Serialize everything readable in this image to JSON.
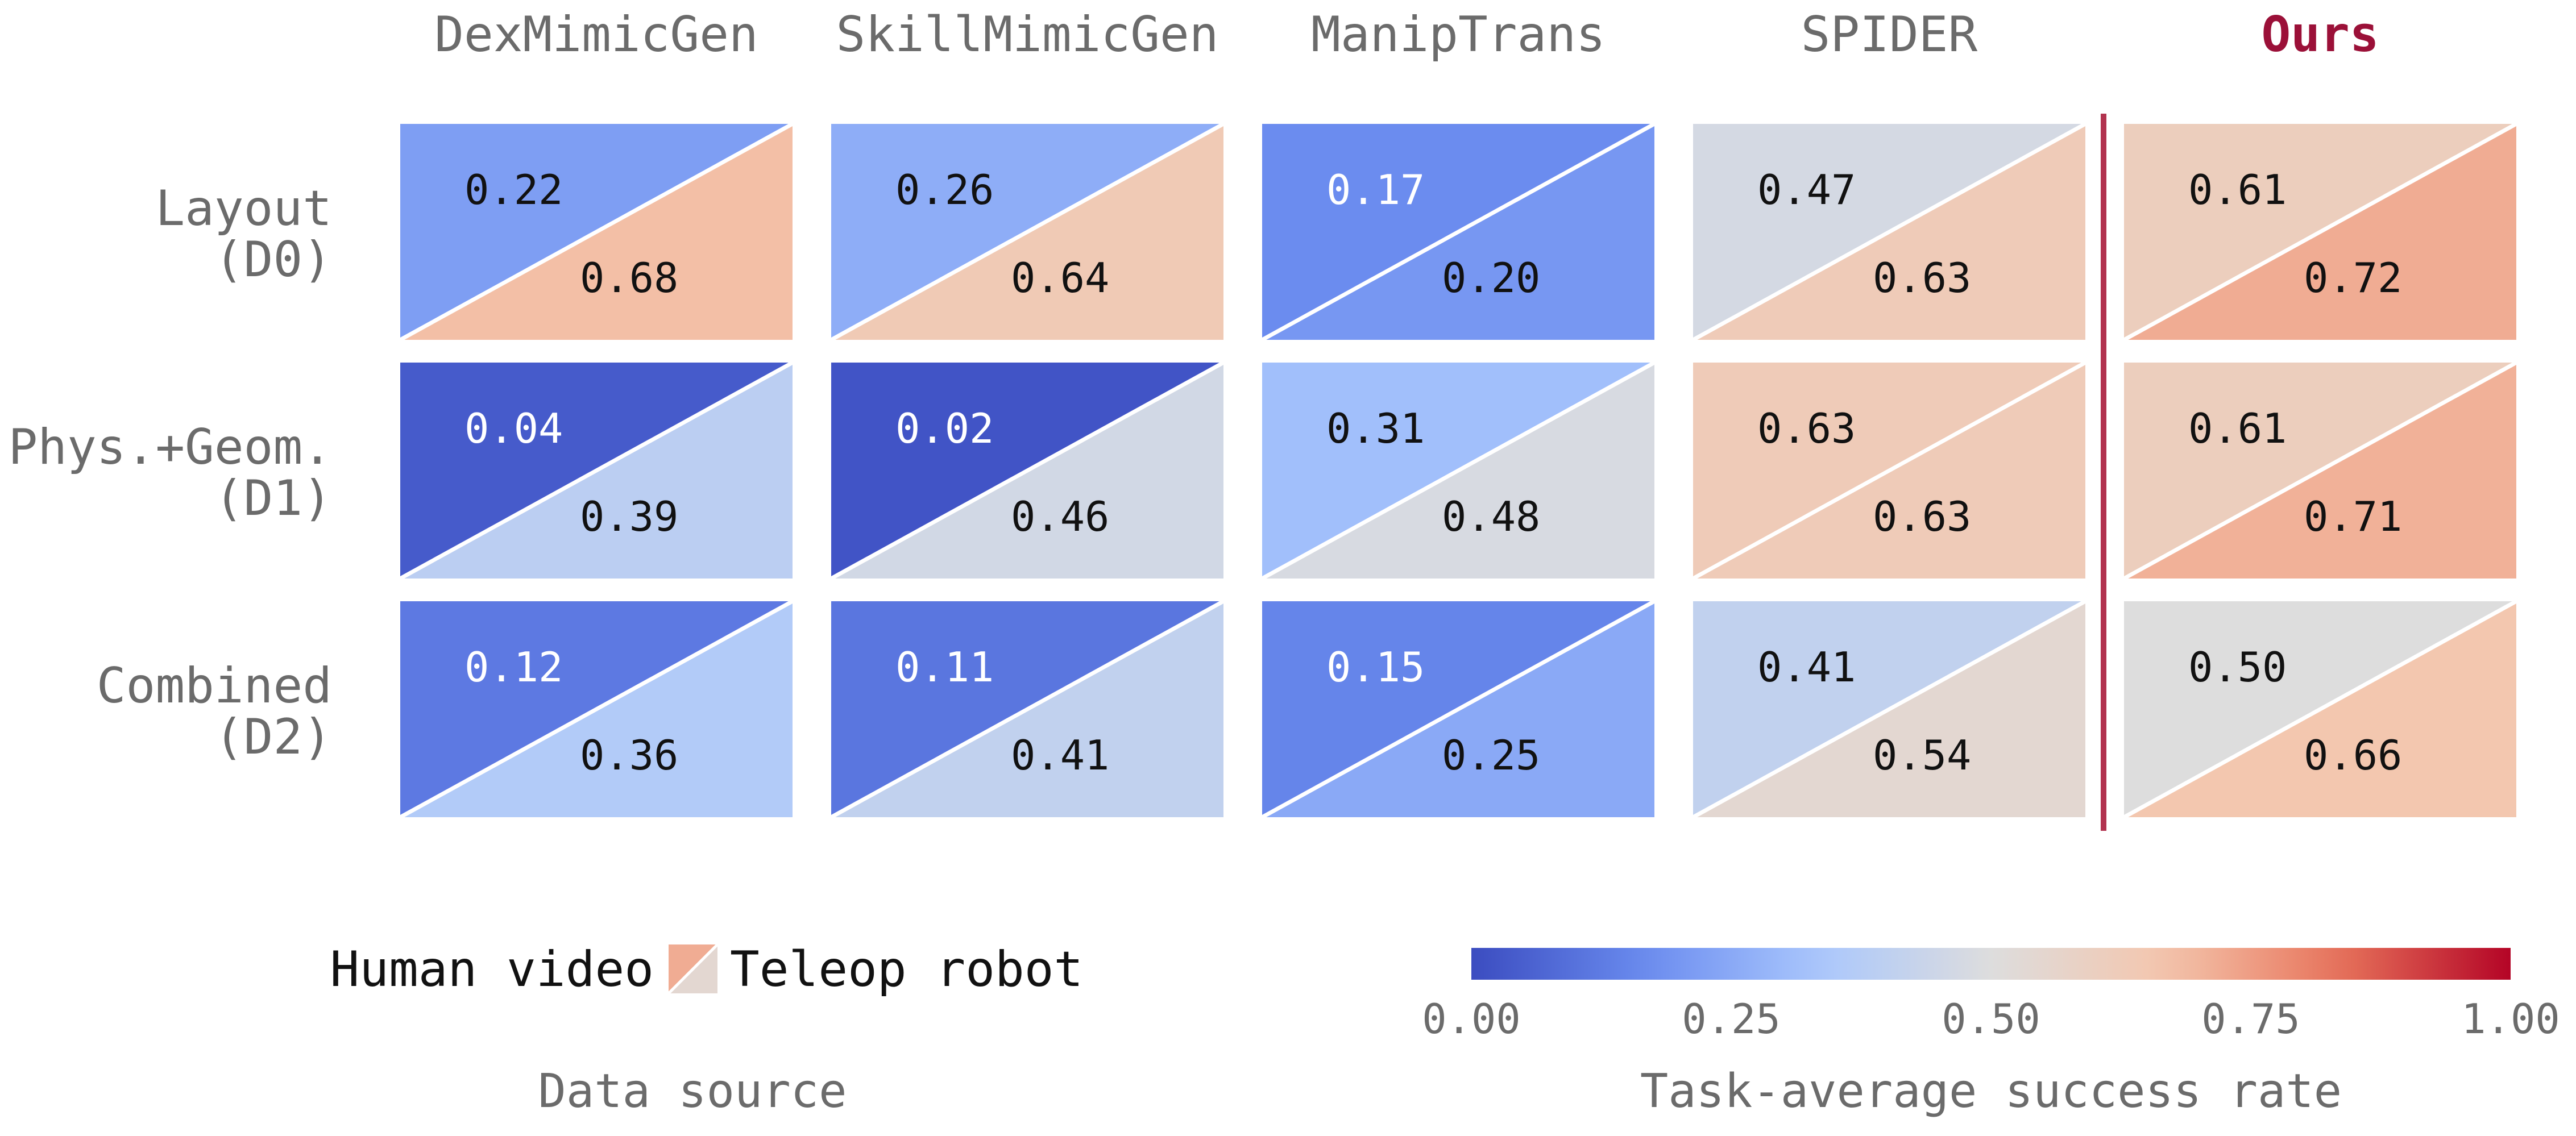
{
  "chart_data": {
    "type": "heatmap",
    "columns": [
      "DexMimicGen",
      "SkillMimicGen",
      "ManipTrans",
      "SPIDER",
      "Ours"
    ],
    "highlight_column": "Ours",
    "highlight_color": "#9b1038",
    "rows": [
      {
        "label_line1": "Layout",
        "label_line2": "(D0)"
      },
      {
        "label_line1": "Phys.+Geom.",
        "label_line2": "(D1)"
      },
      {
        "label_line1": "Combined",
        "label_line2": "(D2)"
      }
    ],
    "series": [
      {
        "name": "Human video",
        "values": [
          [
            0.22,
            0.26,
            0.17,
            0.47,
            0.61
          ],
          [
            0.04,
            0.02,
            0.31,
            0.63,
            0.61
          ],
          [
            0.12,
            0.11,
            0.15,
            0.41,
            0.5
          ]
        ]
      },
      {
        "name": "Teleop robot",
        "values": [
          [
            0.68,
            0.64,
            0.2,
            0.63,
            0.72
          ],
          [
            0.39,
            0.46,
            0.48,
            0.63,
            0.71
          ],
          [
            0.36,
            0.41,
            0.25,
            0.54,
            0.66
          ]
        ]
      }
    ],
    "cell_split": "Human video value in upper-left triangle, Teleop robot value in lower-right triangle",
    "legend_title": "Data source",
    "colorbar": {
      "label": "Task-average success rate",
      "range": [
        0,
        1
      ],
      "ticks": [
        "0.00",
        "0.25",
        "0.50",
        "0.75",
        "1.00"
      ],
      "colormap": "coolwarm",
      "colors": [
        "#3b4cc0",
        "#6a8bef",
        "#aac7fd",
        "#dddddd",
        "#f4c6ad",
        "#e7745b",
        "#b40426"
      ]
    }
  }
}
